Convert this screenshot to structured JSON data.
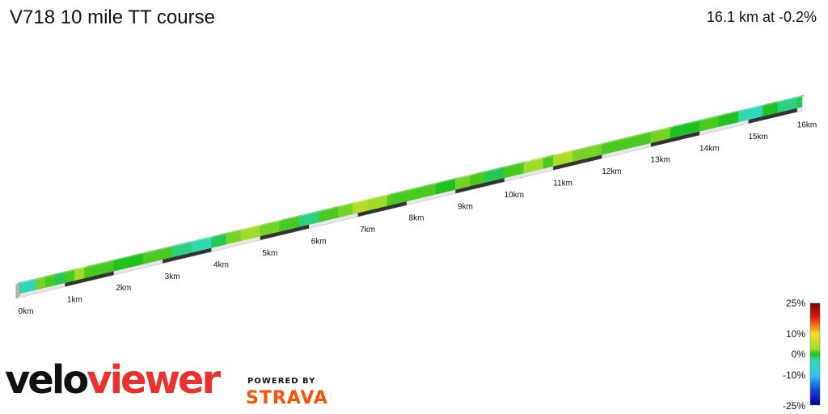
{
  "header": {
    "title": "V718 10 mile TT course",
    "summary": "16.1 km at -0.2%"
  },
  "chart_data": {
    "type": "area",
    "title": "V718 10 mile TT course",
    "distance_km": 16.1,
    "avg_gradient_pct": -0.2,
    "x_ticks": [
      "0km",
      "1km",
      "2km",
      "3km",
      "4km",
      "5km",
      "6km",
      "7km",
      "8km",
      "9km",
      "10km",
      "11km",
      "12km",
      "13km",
      "14km",
      "15km",
      "16km"
    ],
    "gradient_profile": {
      "x_km": [
        0,
        0.2,
        0.4,
        0.6,
        0.8,
        1.0,
        1.2,
        1.4,
        2.0,
        2.6,
        3.0,
        3.2,
        3.6,
        4.0,
        4.3,
        4.6,
        5.0,
        5.4,
        5.8,
        6.2,
        6.6,
        6.9,
        7.0,
        7.2,
        7.6,
        8.0,
        8.6,
        9.0,
        9.3,
        9.6,
        10.0,
        10.4,
        10.8,
        11.0,
        11.4,
        12.0,
        12.6,
        13.0,
        13.4,
        14.0,
        14.4,
        14.8,
        15.0,
        15.3,
        15.6,
        16.0,
        16.1
      ],
      "gradient_pct": [
        -3,
        -4,
        2,
        1,
        -1,
        1,
        3,
        1,
        0,
        1,
        1,
        -2,
        -3,
        -1,
        2,
        3,
        2,
        1,
        -2,
        1,
        2,
        4,
        5,
        3,
        1,
        1,
        0,
        2,
        1,
        -1,
        1,
        3,
        1,
        4,
        2,
        1,
        1,
        2,
        0,
        1,
        0,
        -3,
        -4,
        0,
        -2,
        -1,
        1
      ]
    },
    "elevation_trend": "rising steadily from start to finish",
    "colorscale": {
      "labels": [
        "25%",
        "10%",
        "0%",
        "-10%",
        "-25%"
      ],
      "stops": [
        {
          "value": 25,
          "color": "#7a0000"
        },
        {
          "value": 18,
          "color": "#e01b10"
        },
        {
          "value": 10,
          "color": "#f0e020"
        },
        {
          "value": 3,
          "color": "#9fdc2a"
        },
        {
          "value": 0,
          "color": "#20c020"
        },
        {
          "value": -3,
          "color": "#30d8b0"
        },
        {
          "value": -10,
          "color": "#30c8f0"
        },
        {
          "value": -18,
          "color": "#1040e0"
        },
        {
          "value": -25,
          "color": "#00008a"
        }
      ]
    }
  },
  "branding": {
    "logo_part1": "velo",
    "logo_part2": "viewer",
    "powered_by": "POWERED BY",
    "strava": "STRAVA"
  }
}
